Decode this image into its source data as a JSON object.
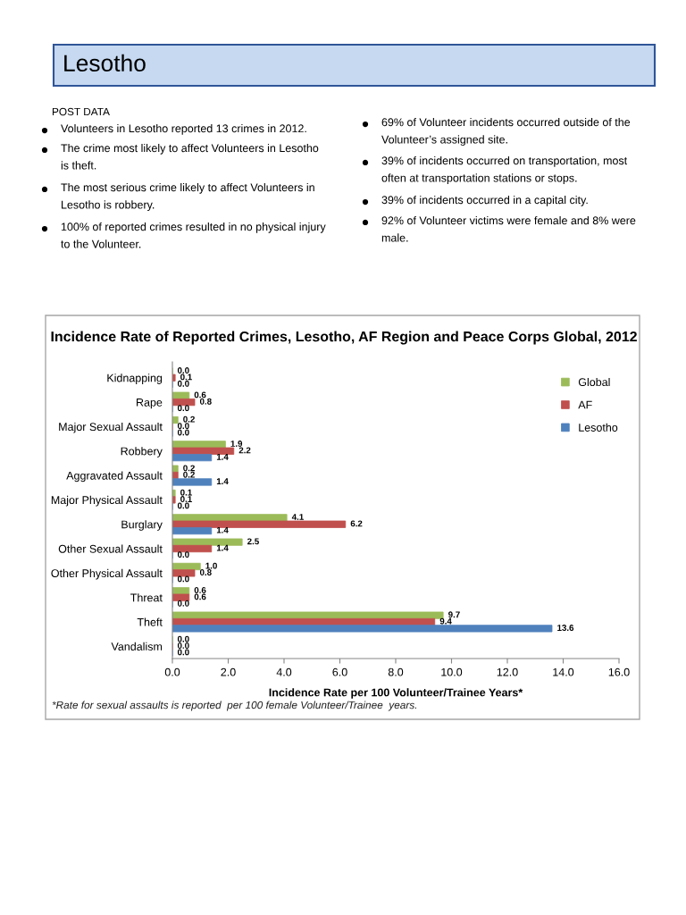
{
  "chart_data": {
    "type": "bar",
    "orientation": "horizontal",
    "title": "Incidence Rate of Reported Crimes, Lesotho, AF Region and Peace Corps Global, 2012",
    "xlabel": "Incidence Rate per 100 Volunteer/Trainee Years*",
    "categories": [
      "Kidnapping",
      "Rape",
      "Major Sexual Assault",
      "Robbery",
      "Aggravated Assault",
      "Major Physical Assault",
      "Burglary",
      "Other Sexual Assault",
      "Other Physical Assault",
      "Threat",
      "Theft",
      "Vandalism"
    ],
    "series": [
      {
        "name": "Global",
        "color": "#9bbb59",
        "values": [
          0.0,
          0.6,
          0.2,
          1.9,
          0.2,
          0.1,
          4.1,
          2.5,
          1.0,
          0.6,
          9.7,
          0.0
        ],
        "value_labels": [
          "0.0",
          "0.6",
          "0.2",
          "1.9",
          "0.2",
          "0.1",
          "4.1",
          "2.5",
          "1.0",
          "0.6",
          "9.7",
          "0.0"
        ]
      },
      {
        "name": "AF",
        "color": "#c0504d",
        "values": [
          0.1,
          0.8,
          0.0,
          2.2,
          0.2,
          0.1,
          6.2,
          1.4,
          0.8,
          0.6,
          9.4,
          0.0
        ],
        "value_labels": [
          "0.1",
          "0.8",
          "0.0",
          "2.2",
          "0.2",
          "0.1",
          "6.2",
          "1.4",
          "0.8",
          "0.6",
          "9.4",
          "0.0"
        ]
      },
      {
        "name": "Lesotho",
        "color": "#4f81bd",
        "values": [
          0.0,
          0.0,
          0.0,
          1.4,
          1.4,
          0.0,
          1.4,
          0.0,
          0.0,
          0.0,
          13.6,
          0.0
        ],
        "value_labels": [
          "0.0",
          "0.0",
          "0.0",
          "1.4",
          "1.4",
          "0.0",
          "1.4",
          "0.0",
          "0.0",
          "0.0",
          "13.6",
          "0.0"
        ]
      }
    ],
    "xlim": [
      0,
      16
    ],
    "xticks": [
      {
        "value": 0,
        "label": "0.0"
      },
      {
        "value": 2,
        "label": "2.0"
      },
      {
        "value": 4,
        "label": "4.0"
      },
      {
        "value": 6,
        "label": "6.0"
      },
      {
        "value": 8,
        "label": "8.0"
      },
      {
        "value": 10,
        "label": "10.0"
      },
      {
        "value": 12,
        "label": "12.0"
      },
      {
        "value": 14,
        "label": "14.0"
      },
      {
        "value": 16,
        "label": "16.0"
      }
    ],
    "grid": false,
    "legend": "top right",
    "annotations": [
      "Lesotho",
      "POST DATA",
      "Volunteers in Lesotho reported 13 crimes in 2012.",
      "The crime most likely to affect Volunteers in Lesotho is theft.",
      "The most serious crime likely to affect Volunteers in Lesotho is robbery.",
      "100% of reported crimes resulted in no physical injury to the Volunteer.",
      "69% of Volunteer incidents occurred outside of the Volunteer’s assigned site.",
      "39% of incidents occurred on transportation, most often at transportation stations or stops.",
      "39% of incidents occurred in a capital city.",
      "92% of Volunteer victims were female and 8% were male.",
      "*Rate for sexual assaults is reported  per 100 female Volunteer/Trainee  years."
    ]
  }
}
